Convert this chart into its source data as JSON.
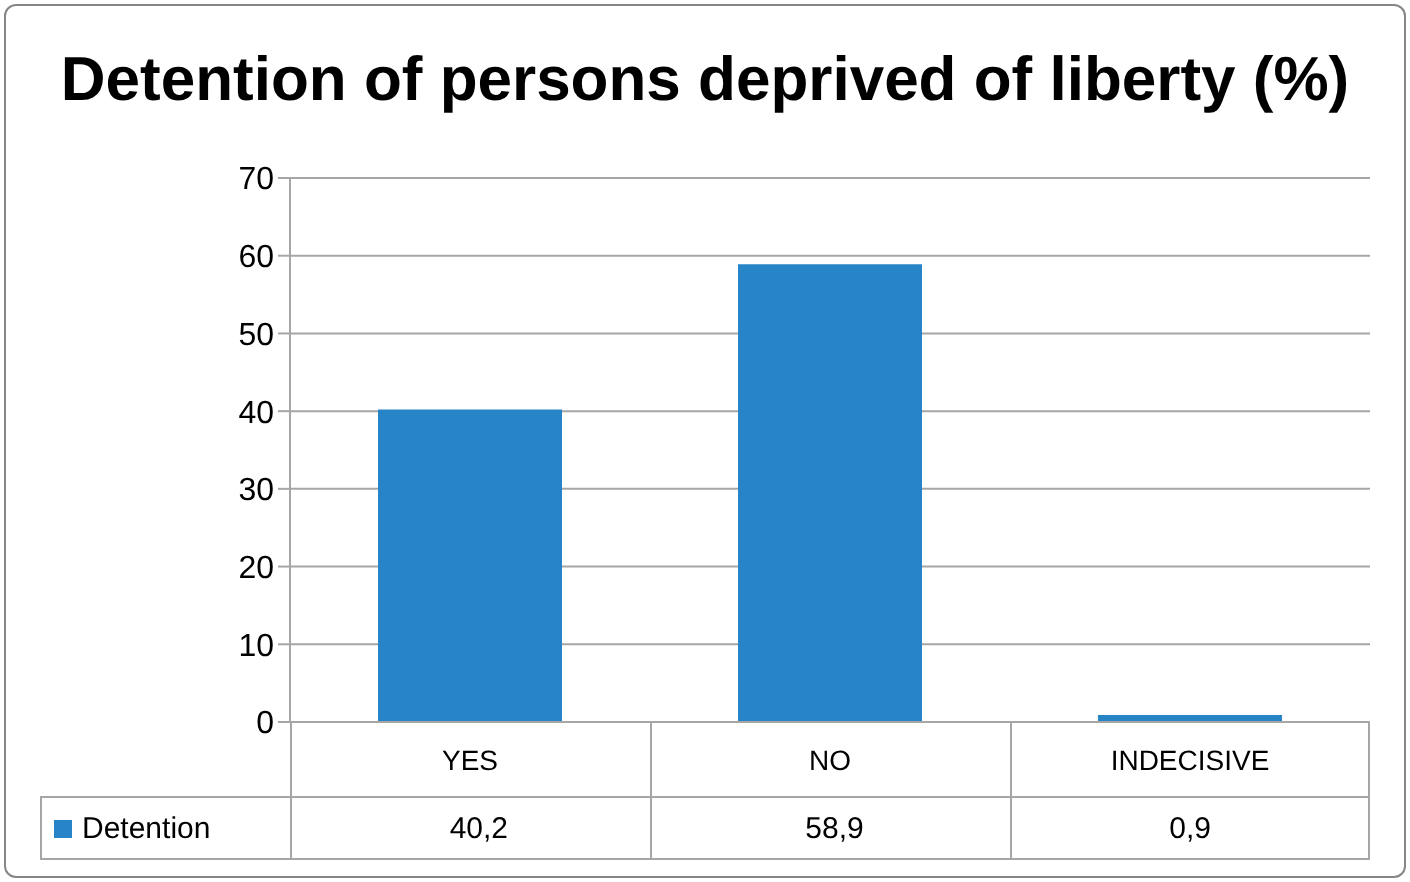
{
  "chart_data": {
    "type": "bar",
    "title": "Detention of persons deprived of liberty (%)",
    "categories": [
      "YES",
      "NO",
      "INDECISIVE"
    ],
    "series": [
      {
        "name": "Detention",
        "color": "#2784c7",
        "values": [
          40.2,
          58.9,
          0.9
        ],
        "value_labels": [
          "40,2",
          "58,9",
          "0,9"
        ]
      }
    ],
    "ylim": [
      0,
      70
    ],
    "yticks": [
      0,
      10,
      20,
      30,
      40,
      50,
      60,
      70
    ],
    "grid": "y",
    "legend": "bottom"
  }
}
